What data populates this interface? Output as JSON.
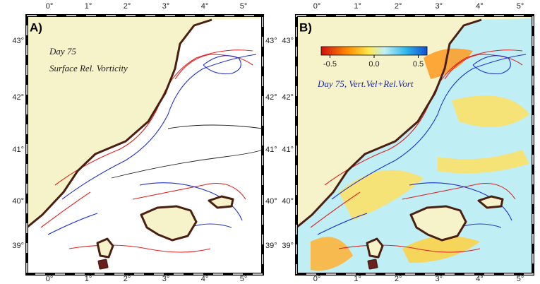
{
  "panels": [
    {
      "label": "A)",
      "annotations": [
        "Day 75",
        "Surface Rel. Vorticity"
      ]
    },
    {
      "label": "B)",
      "annotations": [
        "Day 75, Vert.Vel+Rel.Vort"
      ],
      "colorbar": {
        "range": [
          -0.6,
          0.6
        ],
        "ticks": [
          {
            "value": -0.5,
            "label": "-0.5"
          },
          {
            "value": 0,
            "label": "0.0"
          },
          {
            "value": 0.5,
            "label": "0.5"
          }
        ]
      }
    }
  ],
  "longitude_ticks": [
    "0°",
    "1°",
    "2°",
    "3°",
    "4°",
    "5°"
  ],
  "latitude_ticks": [
    "43°",
    "42°",
    "41°",
    "40°",
    "39°"
  ]
}
